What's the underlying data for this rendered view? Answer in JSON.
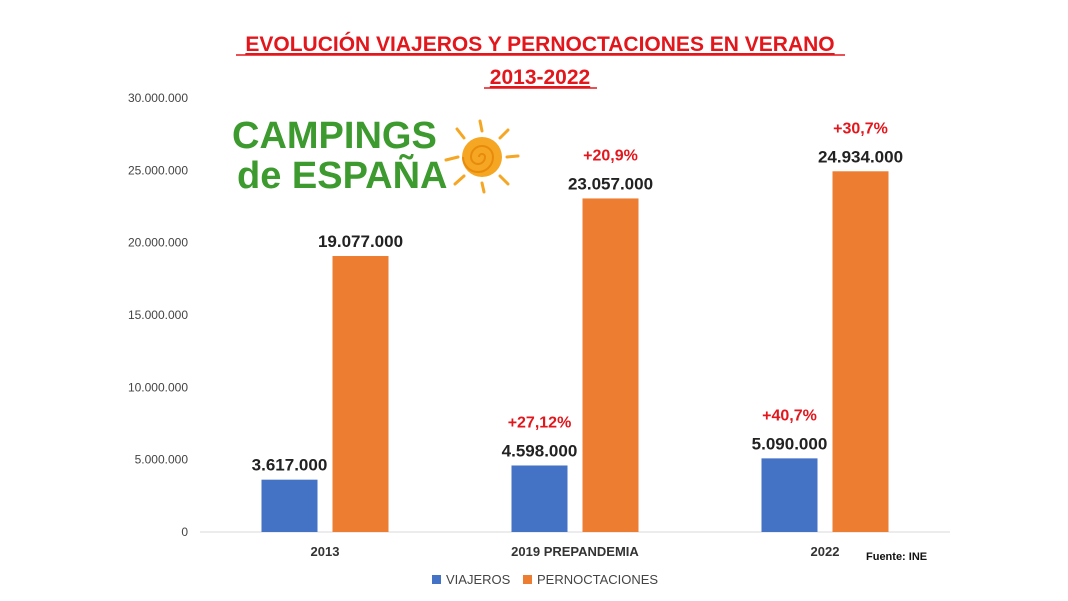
{
  "chart_data": {
    "type": "bar",
    "title": "EVOLUCIÓN VIAJEROS Y PERNOCTACIONES EN VERANO",
    "subtitle": "2013-2022",
    "categories": [
      "2013",
      "2019 PREPANDEMIA",
      "2022"
    ],
    "series": [
      {
        "name": "VIAJEROS",
        "values": [
          3617000,
          4598000,
          5090000
        ],
        "labels": [
          "3.617.000",
          "4.598.000",
          "5.090.000"
        ],
        "changes": [
          "",
          "+27,12%",
          "+40,7%"
        ]
      },
      {
        "name": "PERNOCTACIONES",
        "values": [
          19077000,
          23057000,
          24934000
        ],
        "labels": [
          "19.077.000",
          "23.057.000",
          "24.934.000"
        ],
        "changes": [
          "",
          "+20,9%",
          "+30,7%"
        ]
      }
    ],
    "yticks": [
      "0",
      "5.000.000",
      "10.000.000",
      "15.000.000",
      "20.000.000",
      "25.000.000",
      "30.000.000"
    ],
    "ylim": [
      0,
      30000000
    ],
    "grid": false,
    "legend_position": "bottom",
    "source": "Fuente: INE"
  },
  "logo": {
    "line1": "CAMPINGS",
    "line2": "de ESPAÑA"
  },
  "colors": {
    "viajeros": "#4472c4",
    "pernoctaciones": "#ed7d31",
    "accent_red": "#e3161c",
    "logo_green": "#3c9a2e",
    "sun": "#f5a623"
  }
}
